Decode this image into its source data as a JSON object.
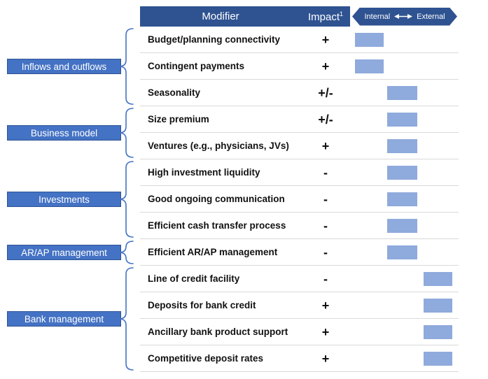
{
  "palette": {
    "header_bg": "#2F5391",
    "category_bg": "#4472C4",
    "category_border": "#2F5496",
    "bar_fill": "#8FAADC",
    "brace": "#4472C4",
    "divider": "#D9D9D9",
    "row_text": "#111111"
  },
  "header": {
    "modifier_label": "Modifier",
    "impact_label": "Impact",
    "impact_footnote_mark": "1",
    "scale_left": "Internal",
    "scale_right": "External"
  },
  "groups": [
    {
      "label": "Inflows and outflows",
      "rows": [
        {
          "modifier": "Budget/planning connectivity",
          "impact": "+",
          "position": "internal"
        },
        {
          "modifier": "Contingent payments",
          "impact": "+",
          "position": "internal"
        },
        {
          "modifier": "Seasonality",
          "impact": "+/-",
          "position": "mid"
        }
      ]
    },
    {
      "label": "Business model",
      "rows": [
        {
          "modifier": "Size premium",
          "impact": "+/-",
          "position": "mid"
        },
        {
          "modifier": "Ventures (e.g., physicians, JVs)",
          "impact": "+",
          "position": "mid"
        }
      ]
    },
    {
      "label": "Investments",
      "rows": [
        {
          "modifier": "High investment liquidity",
          "impact": "-",
          "position": "mid"
        },
        {
          "modifier": "Good ongoing communication",
          "impact": "-",
          "position": "mid"
        },
        {
          "modifier": "Efficient cash transfer process",
          "impact": "-",
          "position": "mid"
        }
      ]
    },
    {
      "label": "AR/AP management",
      "rows": [
        {
          "modifier": "Efficient AR/AP management",
          "impact": "-",
          "position": "mid"
        }
      ]
    },
    {
      "label": "Bank management",
      "rows": [
        {
          "modifier": "Line of credit facility",
          "impact": "-",
          "position": "external"
        },
        {
          "modifier": "Deposits for bank credit",
          "impact": "+",
          "position": "external"
        },
        {
          "modifier": "Ancillary bank product support",
          "impact": "+",
          "position": "external"
        },
        {
          "modifier": "Competitive deposit rates",
          "impact": "+",
          "position": "external"
        }
      ]
    }
  ]
}
